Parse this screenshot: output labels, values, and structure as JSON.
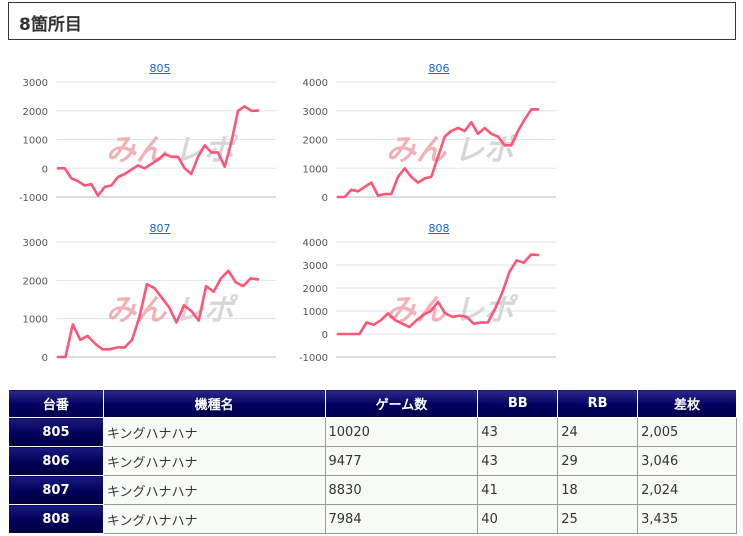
{
  "header": {
    "title": "8箇所目"
  },
  "watermark": {
    "text_a": "みん",
    "text_b": "レポ"
  },
  "colors": {
    "line": "#ff5577",
    "grid": "#dde6ee",
    "axis": "#bbbbbb",
    "header_bg": "#000060"
  },
  "charts": [
    {
      "link": "805",
      "chart_data": {
        "type": "line",
        "title": "805",
        "yticks": [
          3000,
          2000,
          1000,
          0,
          -1000
        ],
        "ylim": [
          -1000,
          3000
        ],
        "values": [
          0,
          0,
          -350,
          -450,
          -600,
          -550,
          -950,
          -650,
          -600,
          -300,
          -200,
          -50,
          100,
          0,
          150,
          300,
          500,
          400,
          400,
          0,
          -200,
          400,
          800,
          550,
          550,
          50,
          900,
          2000,
          2150,
          2000,
          2005
        ]
      }
    },
    {
      "link": "806",
      "chart_data": {
        "type": "line",
        "title": "806",
        "yticks": [
          4000,
          3000,
          2000,
          1000,
          0
        ],
        "ylim": [
          0,
          4000
        ],
        "values": [
          0,
          0,
          250,
          200,
          350,
          500,
          50,
          100,
          100,
          700,
          1000,
          700,
          500,
          650,
          700,
          1400,
          2100,
          2300,
          2400,
          2300,
          2600,
          2200,
          2400,
          2200,
          2100,
          1800,
          1800,
          2300,
          2700,
          3050,
          3046
        ]
      }
    },
    {
      "link": "807",
      "chart_data": {
        "type": "line",
        "title": "807",
        "yticks": [
          3000,
          2000,
          1000,
          0
        ],
        "ylim": [
          0,
          3000
        ],
        "values": [
          0,
          0,
          850,
          450,
          550,
          350,
          200,
          200,
          250,
          250,
          450,
          1050,
          1900,
          1800,
          1550,
          1300,
          900,
          1350,
          1200,
          950,
          1850,
          1700,
          2050,
          2250,
          1950,
          1850,
          2050,
          2024
        ]
      }
    },
    {
      "link": "808",
      "chart_data": {
        "type": "line",
        "title": "808",
        "yticks": [
          4000,
          3000,
          2000,
          1000,
          0,
          -1000
        ],
        "ylim": [
          -1000,
          4000
        ],
        "values": [
          0,
          0,
          0,
          0,
          500,
          400,
          600,
          900,
          600,
          450,
          300,
          600,
          850,
          1000,
          1400,
          900,
          750,
          800,
          750,
          450,
          500,
          500,
          1100,
          1800,
          2700,
          3200,
          3100,
          3450,
          3435
        ]
      }
    }
  ],
  "table": {
    "headers": [
      "台番",
      "機種名",
      "ゲーム数",
      "BB",
      "RB",
      "差枚"
    ],
    "rows": [
      [
        "805",
        "キングハナハナ",
        "10020",
        "43",
        "24",
        "2,005"
      ],
      [
        "806",
        "キングハナハナ",
        "9477",
        "43",
        "29",
        "3,046"
      ],
      [
        "807",
        "キングハナハナ",
        "8830",
        "41",
        "18",
        "2,024"
      ],
      [
        "808",
        "キングハナハナ",
        "7984",
        "40",
        "25",
        "3,435"
      ]
    ]
  }
}
